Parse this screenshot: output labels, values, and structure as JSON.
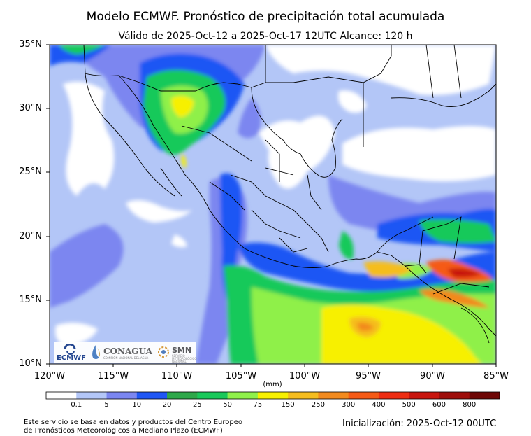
{
  "title": "Modelo ECMWF. Pronóstico de precipitación total acumulada",
  "subtitle": "Válido de 2025-Oct-12 a 2025-Oct-17 12UTC   Alcance: 120 h",
  "lat_labels": [
    "35°N",
    "30°N",
    "25°N",
    "20°N",
    "15°N",
    "10°N"
  ],
  "lon_labels": [
    "120°W",
    "115°W",
    "110°W",
    "105°W",
    "100°W",
    "95°W",
    "90°W",
    "85°W"
  ],
  "units": "(mm)",
  "colorbar": {
    "labels": [
      "0.1",
      "5",
      "10",
      "20",
      "25",
      "50",
      "75",
      "150",
      "250",
      "300",
      "400",
      "500",
      "600",
      "800"
    ],
    "colors": [
      "#ffffff",
      "#b3c6f7",
      "#7b86f0",
      "#1f56f4",
      "#2ea84a",
      "#19c95a",
      "#8ff04a",
      "#f7f000",
      "#f5bd1e",
      "#f28a1e",
      "#f55a16",
      "#ee2d12",
      "#c8150e",
      "#9e0d0a",
      "#6e0605"
    ]
  },
  "logos": {
    "ecmwf": "ECMWF",
    "conagua": "CONAGUA",
    "conagua_sub": "COMISIÓN NACIONAL DEL AGUA",
    "smn": "SMN",
    "smn_sub": "SERVICIO METEOROLÓGICO NACIONAL"
  },
  "footer_left_1": "Este servicio se basa en datos y productos del Centro Europeo",
  "footer_left_2": "de Pronósticos Meteorológicos a Mediano Plazo (ECMWF)",
  "footer_right": "Inicialización: 2025-Oct-12 00UTC"
}
